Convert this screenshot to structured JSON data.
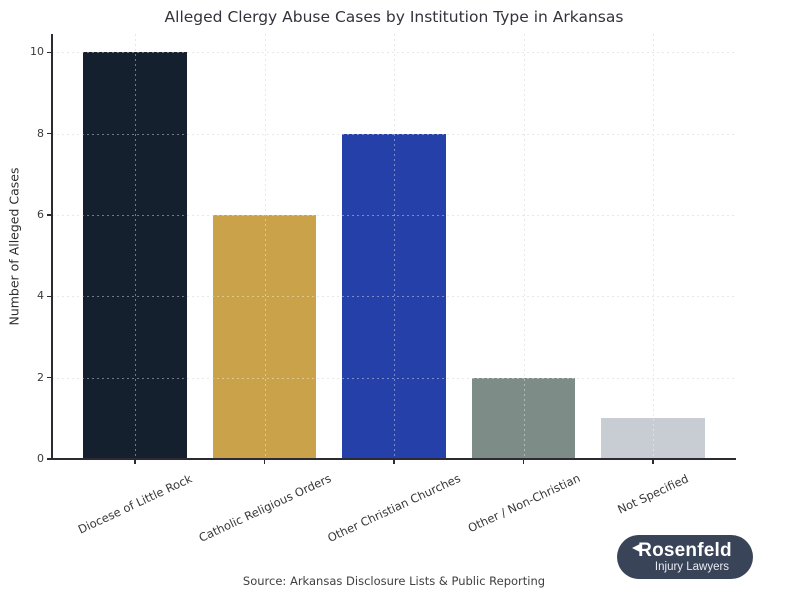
{
  "source_note": "Source: Arkansas Disclosure Lists & Public Reporting",
  "logo": {
    "name": "Rosenfeld",
    "tagline": "Injury Lawyers",
    "background": "#3a4458",
    "text_color": "#ffffff"
  },
  "chart_data": {
    "type": "bar",
    "title": "Alleged Clergy Abuse Cases by Institution Type in Arkansas",
    "categories": [
      "Diocese of Little Rock",
      "Catholic Religious Orders",
      "Other Christian Churches",
      "Other / Non-Christian",
      "Not Specified"
    ],
    "values": [
      10,
      6,
      8,
      2,
      1
    ],
    "bar_colors": [
      "#14202e",
      "#c9a24a",
      "#2540a8",
      "#7e8c88",
      "#c7cdd3"
    ],
    "xlabel": "",
    "ylabel": "Number of Alleged Cases",
    "ylim": [
      0,
      10.45
    ],
    "yticks": [
      0,
      2,
      4,
      6,
      8,
      10
    ],
    "grid": {
      "visible": true,
      "style": "dotted",
      "color": "#d8d8d8",
      "axes": "both",
      "drawn_over_bars": true
    },
    "legend": null,
    "bar_width_fraction": 0.8,
    "x_tick_label_rotation_deg": 25
  }
}
